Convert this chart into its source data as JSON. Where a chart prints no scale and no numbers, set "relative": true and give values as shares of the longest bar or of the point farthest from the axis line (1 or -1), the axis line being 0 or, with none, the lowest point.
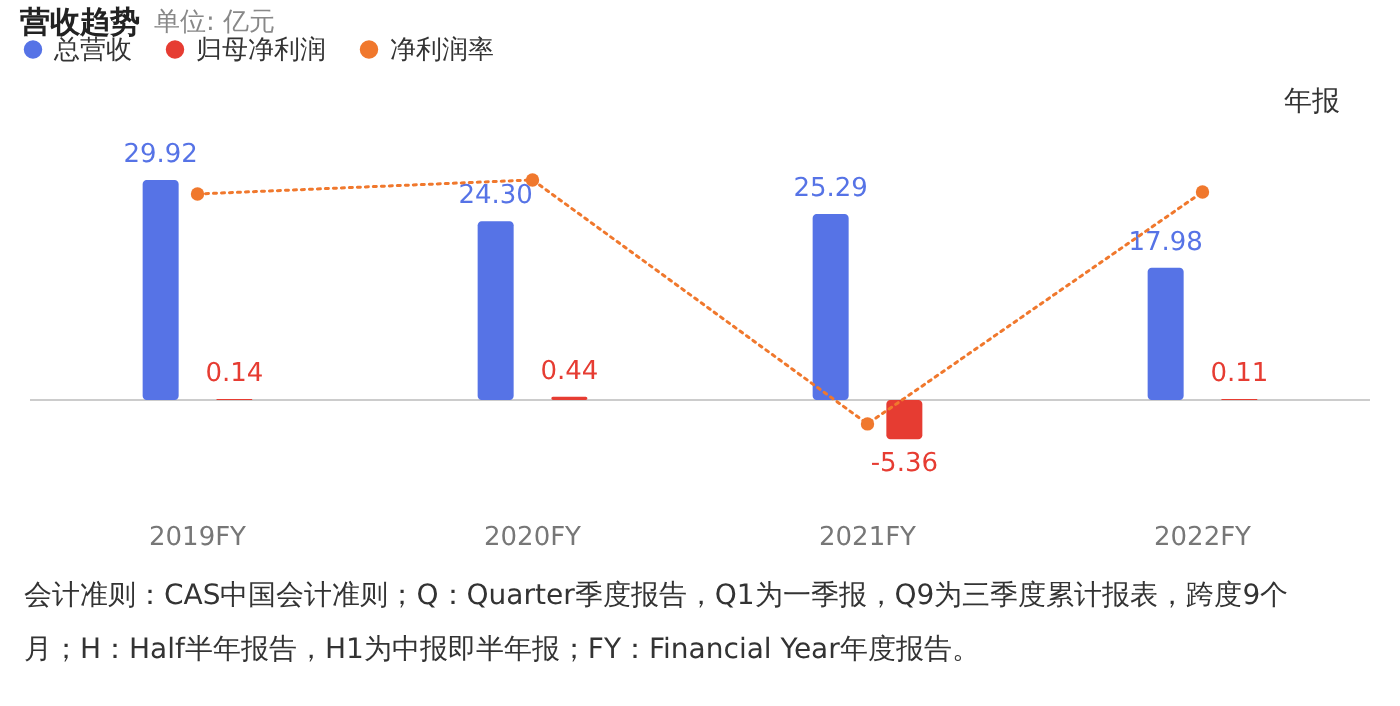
{
  "chart_data": [
    {
      "type": "bar",
      "title": "营收趋势",
      "subtitle": "单位: 亿元",
      "categories": [
        "2019FY",
        "2020FY",
        "2021FY",
        "2022FY"
      ],
      "legend": "top left",
      "tick_labels": "x",
      "series": [
        {
          "name": "总营收",
          "color": "#5673e6",
          "values": [
            29.92,
            24.3,
            25.29,
            17.98
          ],
          "value_labels": [
            "29.92",
            "24.30",
            "25.29",
            "17.98"
          ]
        },
        {
          "name": "归母净利润",
          "color": "#e63c32",
          "values": [
            0.14,
            0.44,
            -5.36,
            0.11
          ],
          "value_labels": [
            "0.14",
            "0.44",
            "-5.36",
            "0.11"
          ]
        }
      ],
      "annotations": [
        "年报",
        "会计准则：CAS中国会计准则；Q：Quarter季度报告，Q1为一季报，Q9为三季度累计报表，跨度9个月；H：Half半年报告，H1为中报即半年报；FY：Financial Year年度报告。"
      ]
    },
    {
      "type": "line",
      "categories": [
        "2019FY",
        "2020FY",
        "2021FY",
        "2022FY"
      ],
      "relative": true,
      "marker": "circle",
      "line_style": "dotted",
      "legend": "top left",
      "tick_labels": false,
      "series": [
        {
          "name": "净利润率",
          "color": "#f0782d",
          "values": [
            0.936,
            1.0,
            -0.109,
            0.945
          ]
        }
      ]
    }
  ]
}
